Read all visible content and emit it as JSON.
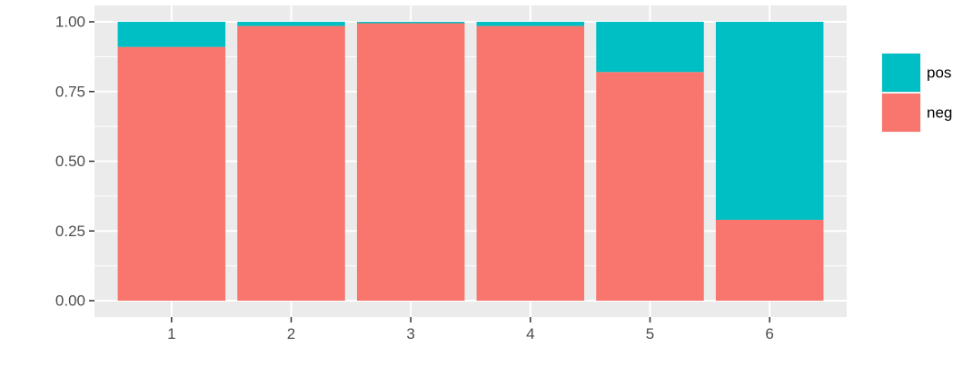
{
  "chart_data": {
    "type": "bar",
    "stacked": true,
    "categories": [
      "1",
      "2",
      "3",
      "4",
      "5",
      "6"
    ],
    "series": [
      {
        "name": "neg",
        "values": [
          0.91,
          0.985,
          0.995,
          0.985,
          0.82,
          0.29
        ]
      },
      {
        "name": "pos",
        "values": [
          0.09,
          0.015,
          0.005,
          0.015,
          0.18,
          0.71
        ]
      }
    ],
    "title": "",
    "xlabel": "",
    "ylabel": "",
    "ylim": [
      0,
      1
    ],
    "yticks": [
      "0.00",
      "0.25",
      "0.50",
      "0.75",
      "1.00"
    ],
    "legend": {
      "position": "right",
      "entries": [
        "pos",
        "neg"
      ]
    },
    "grid": true,
    "colors": {
      "neg": "#F8766D",
      "pos": "#00BFC4",
      "panel": "#EBEBEB",
      "grid": "#FFFFFF"
    }
  }
}
